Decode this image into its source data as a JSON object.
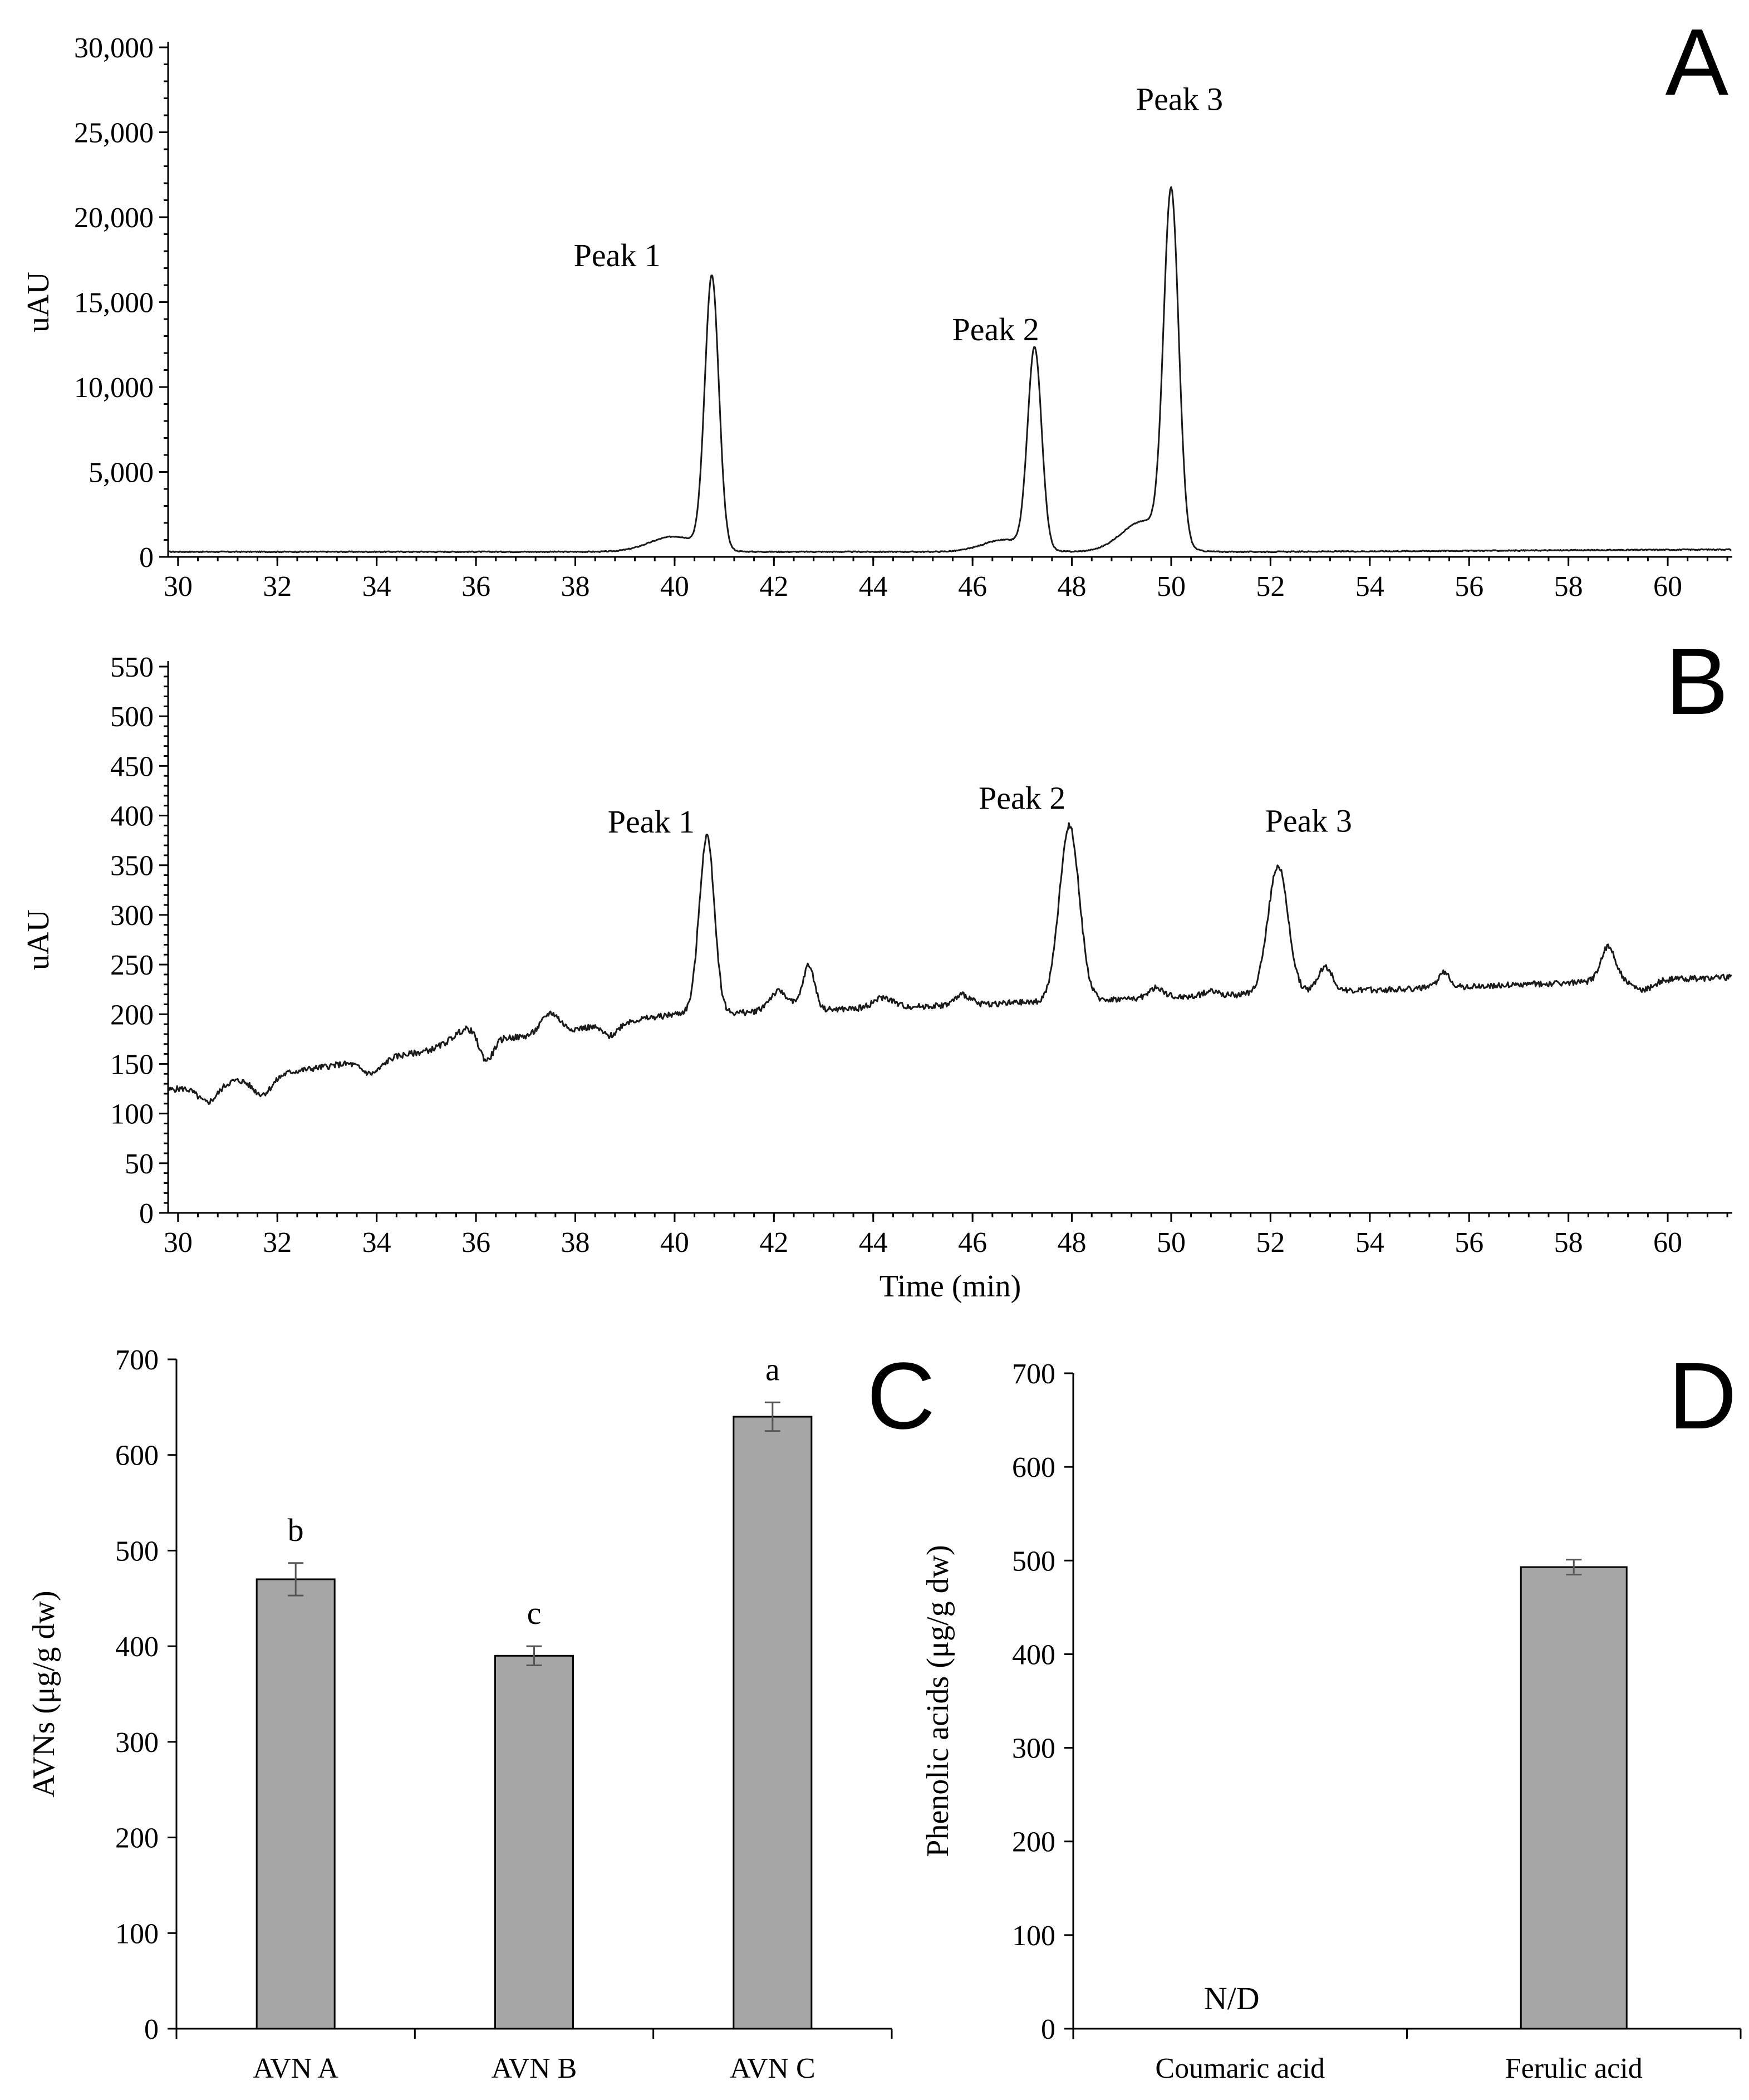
{
  "chart_data": [
    {
      "panel": "A",
      "type": "line",
      "xlabel": "",
      "ylabel": "uAU",
      "xlim": [
        29.8,
        61.3
      ],
      "ylim": [
        0,
        30000
      ],
      "xticks": [
        30,
        32,
        34,
        36,
        38,
        40,
        42,
        44,
        46,
        48,
        50,
        52,
        54,
        56,
        58,
        60
      ],
      "xtick_labels": [
        "30",
        "32",
        "34",
        "36",
        "38",
        "40",
        "42",
        "44",
        "46",
        "48",
        "50",
        "52",
        "54",
        "56",
        "58",
        "60"
      ],
      "yticks": [
        0,
        5000,
        10000,
        15000,
        20000,
        25000,
        30000
      ],
      "ytick_labels": [
        "0",
        "5,000",
        "10,000",
        "15,000",
        "20,000",
        "25,000",
        "30,000"
      ],
      "baseline": 300,
      "peaks": [
        {
          "label": "Peak 1",
          "x": 40.75,
          "y": 16300
        },
        {
          "label": "Peak 2",
          "x": 47.25,
          "y": 12100
        },
        {
          "label": "Peak 3",
          "x": 50.0,
          "y": 20900
        }
      ]
    },
    {
      "panel": "B",
      "type": "line",
      "xlabel": "Time (min)",
      "ylabel": "uAU",
      "xlim": [
        29.8,
        61.3
      ],
      "ylim": [
        0,
        550
      ],
      "xticks": [
        30,
        32,
        34,
        36,
        38,
        40,
        42,
        44,
        46,
        48,
        50,
        52,
        54,
        56,
        58,
        60
      ],
      "xtick_labels": [
        "30",
        "32",
        "34",
        "36",
        "38",
        "40",
        "42",
        "44",
        "46",
        "48",
        "50",
        "52",
        "54",
        "56",
        "58",
        "60"
      ],
      "yticks": [
        0,
        50,
        100,
        150,
        200,
        250,
        300,
        350,
        400,
        450,
        500,
        550
      ],
      "ytick_labels": [
        "0",
        "50",
        "100",
        "150",
        "200",
        "250",
        "300",
        "350",
        "400",
        "450",
        "500",
        "550"
      ],
      "peaks": [
        {
          "label": "Peak 1",
          "x": 40.65,
          "y": 380
        },
        {
          "label": "Peak 2",
          "x": 47.95,
          "y": 390
        },
        {
          "label": "Peak 3",
          "x": 52.15,
          "y": 350
        }
      ]
    },
    {
      "panel": "C",
      "type": "bar",
      "categories": [
        "AVN A",
        "AVN B",
        "AVN C"
      ],
      "values": [
        470,
        390,
        640
      ],
      "errors": [
        17,
        10,
        15
      ],
      "significance": [
        "b",
        "c",
        "a"
      ],
      "ylabel": "AVNs (μg/g dw)",
      "ylim": [
        0,
        700
      ],
      "yticks": [
        0,
        100,
        200,
        300,
        400,
        500,
        600,
        700
      ],
      "ytick_labels": [
        "0",
        "100",
        "200",
        "300",
        "400",
        "500",
        "600",
        "700"
      ]
    },
    {
      "panel": "D",
      "type": "bar",
      "categories": [
        "Coumaric acid",
        "Ferulic acid"
      ],
      "values": [
        0,
        493
      ],
      "errors": [
        0,
        8
      ],
      "bar_labels": [
        "N/D",
        ""
      ],
      "ylabel": "Phenolic acids (μg/g dw)",
      "ylim": [
        0,
        700
      ],
      "yticks": [
        0,
        100,
        200,
        300,
        400,
        500,
        600,
        700
      ],
      "ytick_labels": [
        "0",
        "100",
        "200",
        "300",
        "400",
        "500",
        "600",
        "700"
      ]
    }
  ]
}
